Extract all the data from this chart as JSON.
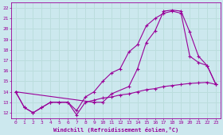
{
  "xlabel": "Windchill (Refroidissement éolien,°C)",
  "bg_color": "#cce8ee",
  "line_color": "#990099",
  "grid_color": "#bbdddd",
  "xlim": [
    -0.5,
    23.5
  ],
  "ylim": [
    11.5,
    22.5
  ],
  "yticks": [
    12,
    13,
    14,
    15,
    16,
    17,
    18,
    19,
    20,
    21,
    22
  ],
  "xticks": [
    0,
    1,
    2,
    3,
    4,
    5,
    6,
    7,
    8,
    9,
    10,
    11,
    12,
    13,
    14,
    15,
    16,
    17,
    18,
    19,
    20,
    21,
    22,
    23
  ],
  "line1_x": [
    0,
    1,
    2,
    3,
    4,
    5,
    6,
    7,
    8,
    9,
    10,
    11,
    12,
    13,
    14,
    15,
    16,
    17,
    18,
    19,
    20,
    21,
    22,
    23
  ],
  "line1_y": [
    14.0,
    12.5,
    12.0,
    12.5,
    13.0,
    13.0,
    13.0,
    11.8,
    13.0,
    13.2,
    13.4,
    13.5,
    13.7,
    13.8,
    14.0,
    14.2,
    14.3,
    14.5,
    14.6,
    14.7,
    14.8,
    14.85,
    14.9,
    14.7
  ],
  "line2_x": [
    0,
    1,
    2,
    3,
    4,
    5,
    6,
    7,
    8,
    9,
    10,
    11,
    12,
    13,
    14,
    15,
    16,
    17,
    18,
    19,
    20,
    21,
    22,
    23
  ],
  "line2_y": [
    14.0,
    12.5,
    12.0,
    12.5,
    13.0,
    13.0,
    13.0,
    12.2,
    13.5,
    14.0,
    15.0,
    15.8,
    16.2,
    17.8,
    18.5,
    20.3,
    21.0,
    21.5,
    21.7,
    21.5,
    17.4,
    16.8,
    16.5,
    14.7
  ],
  "line3_x": [
    0,
    9,
    10,
    11,
    13,
    14,
    15,
    16,
    17,
    18,
    19,
    20,
    21,
    22,
    23
  ],
  "line3_y": [
    14.0,
    13.0,
    13.0,
    13.8,
    14.5,
    16.2,
    18.7,
    19.8,
    21.7,
    21.8,
    21.7,
    19.7,
    17.4,
    16.5,
    14.7
  ]
}
